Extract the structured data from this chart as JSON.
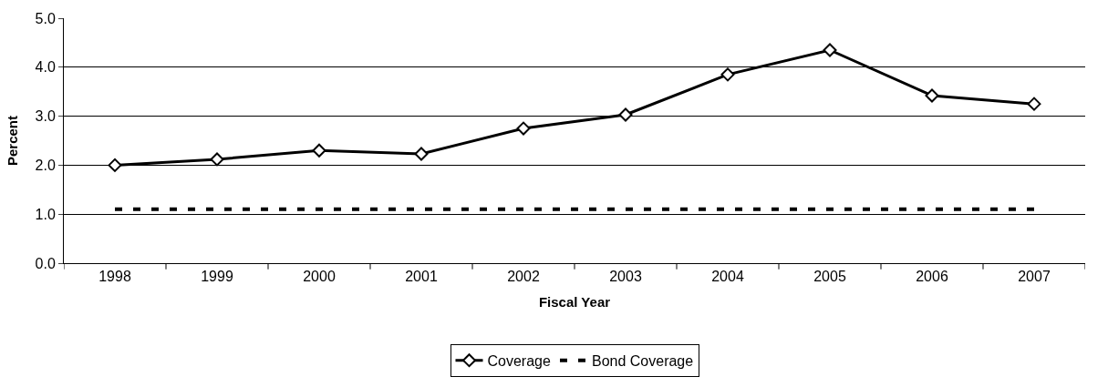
{
  "chart_data": {
    "type": "line",
    "xlabel": "Fiscal Year",
    "ylabel": "Percent",
    "categories": [
      "1998",
      "1999",
      "2000",
      "2001",
      "2002",
      "2003",
      "2004",
      "2005",
      "2006",
      "2007"
    ],
    "series": [
      {
        "name": "Coverage",
        "color": "#000000",
        "marker": "diamond",
        "line_style": "solid",
        "values": [
          2.0,
          2.12,
          2.3,
          2.23,
          2.75,
          3.03,
          3.85,
          4.35,
          3.42,
          3.25
        ]
      },
      {
        "name": "Bond Coverage",
        "color": "#000000",
        "marker": "none",
        "line_style": "dashed",
        "values": [
          1.1,
          1.1,
          1.1,
          1.1,
          1.1,
          1.1,
          1.1,
          1.1,
          1.1,
          1.1
        ]
      }
    ],
    "ylim": [
      0,
      5
    ],
    "yticks": [
      {
        "value": 0,
        "label": "0.0"
      },
      {
        "value": 1,
        "label": "1.0"
      },
      {
        "value": 2,
        "label": "2.0"
      },
      {
        "value": 3,
        "label": "3.0"
      },
      {
        "value": 4,
        "label": "4.0"
      },
      {
        "value": 5,
        "label": "5.0"
      }
    ],
    "grid": "y",
    "legend": "bottom"
  }
}
